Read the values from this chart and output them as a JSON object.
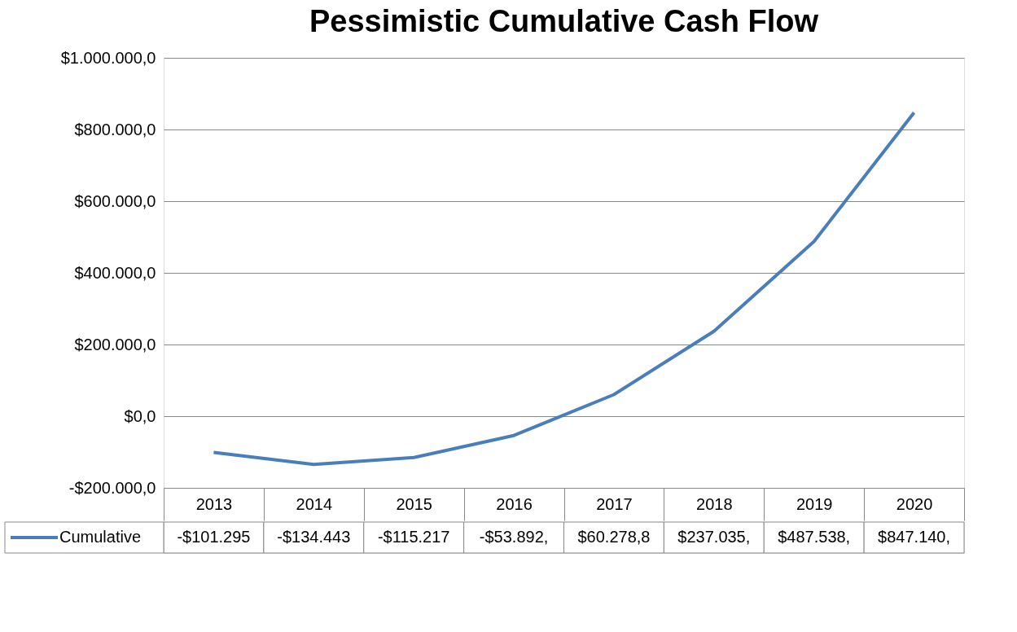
{
  "chart_data": {
    "type": "line",
    "title": "Pessimistic Cumulative Cash Flow",
    "categories": [
      "2013",
      "2014",
      "2015",
      "2016",
      "2017",
      "2018",
      "2019",
      "2020"
    ],
    "series": [
      {
        "name": "Cumulative",
        "color": "#4a7ebb",
        "values": [
          -101295,
          -134443,
          -115217,
          -53892,
          60278.8,
          237035,
          487538,
          847140
        ],
        "value_labels": [
          "-$101.295",
          "-$134.443",
          "-$115.217",
          "-$53.892,",
          "$60.278,8",
          "$237.035,",
          "$487.538,",
          "$847.140,"
        ]
      }
    ],
    "ylim": [
      -200000,
      1000000
    ],
    "yticks": [
      {
        "value": -200000,
        "label": "-$200.000,0"
      },
      {
        "value": 0,
        "label": "$0,0"
      },
      {
        "value": 200000,
        "label": "$200.000,0"
      },
      {
        "value": 400000,
        "label": "$400.000,0"
      },
      {
        "value": 600000,
        "label": "$600.000,0"
      },
      {
        "value": 800000,
        "label": "$800.000,0"
      },
      {
        "value": 1000000,
        "label": "$1.000.000,0"
      }
    ],
    "grid": "y",
    "legend": "bottom",
    "line_style": "solid",
    "marker": "none"
  }
}
